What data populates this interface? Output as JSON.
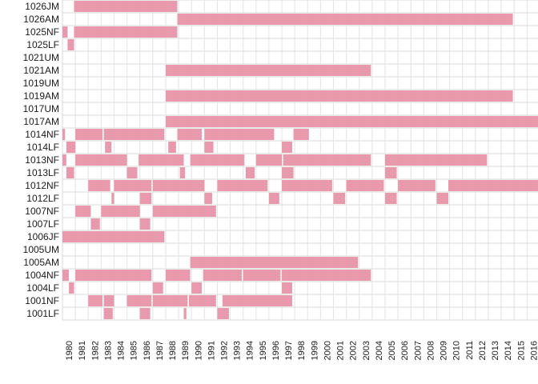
{
  "chart_data": {
    "type": "heatmap",
    "title": "",
    "xlabel": "",
    "ylabel": "",
    "grid": true,
    "fill_color": "#e899ab",
    "grid_color": "#d9d9d9",
    "x_start": 1980,
    "x_end": 2016,
    "x_tick_labels": [
      "1980",
      "1981",
      "1982",
      "1983",
      "1984",
      "1985",
      "1986",
      "1987",
      "1988",
      "1989",
      "1990",
      "1991",
      "1992",
      "1993",
      "1994",
      "1995",
      "1996",
      "1997",
      "1998",
      "1999",
      "2000",
      "2001",
      "2002",
      "2003",
      "2004",
      "2005",
      "2006",
      "2007",
      "2008",
      "2009",
      "2010",
      "2011",
      "2012",
      "2013",
      "2014",
      "2015",
      "2016"
    ],
    "y_categories": [
      "1026JM",
      "1026AM",
      "1025NF",
      "1025LF",
      "1021UM",
      "1021AM",
      "1019UM",
      "1019AM",
      "1017UM",
      "1017AM",
      "1014NF",
      "1014LF",
      "1013NF",
      "1013LF",
      "1012NF",
      "1012LF",
      "1007NF",
      "1007LF",
      "1006JF",
      "1005UM",
      "1005AM",
      "1004NF",
      "1004LF",
      "1001NF",
      "1001LF"
    ],
    "series": [
      {
        "category": "1026JM",
        "intervals": [
          [
            1980.9,
            1988.9
          ]
        ]
      },
      {
        "category": "1026AM",
        "intervals": [
          [
            1988.9,
            2014.9
          ]
        ]
      },
      {
        "category": "1025NF",
        "intervals": [
          [
            1980.0,
            1980.4
          ],
          [
            1980.9,
            1988.9
          ]
        ]
      },
      {
        "category": "1025LF",
        "intervals": [
          [
            1980.4,
            1980.9
          ]
        ]
      },
      {
        "category": "1021UM",
        "intervals": []
      },
      {
        "category": "1021AM",
        "intervals": [
          [
            1988.0,
            2003.9
          ]
        ]
      },
      {
        "category": "1019UM",
        "intervals": []
      },
      {
        "category": "1019AM",
        "intervals": [
          [
            1988.0,
            2014.9
          ]
        ]
      },
      {
        "category": "1017UM",
        "intervals": []
      },
      {
        "category": "1017AM",
        "intervals": [
          [
            1988.0,
            2016.9
          ]
        ]
      },
      {
        "category": "1014NF",
        "intervals": [
          [
            1980.0,
            1980.2
          ],
          [
            1981.0,
            1983.1
          ],
          [
            1983.2,
            1987.9
          ],
          [
            1988.9,
            1990.8
          ],
          [
            1991.0,
            1996.4
          ],
          [
            1997.9,
            1999.1
          ]
        ]
      },
      {
        "category": "1014LF",
        "intervals": [
          [
            1980.3,
            1981.0
          ],
          [
            1983.3,
            1983.8
          ],
          [
            1988.2,
            1988.8
          ],
          [
            1991.0,
            1991.7
          ],
          [
            1997.0,
            1997.8
          ]
        ]
      },
      {
        "category": "1013NF",
        "intervals": [
          [
            1980.0,
            1980.3
          ],
          [
            1981.0,
            1985.0
          ],
          [
            1985.9,
            1989.4
          ],
          [
            1989.9,
            1994.1
          ],
          [
            1995.0,
            1997.0
          ],
          [
            1997.1,
            2003.9
          ],
          [
            2005.0,
            2012.9
          ]
        ]
      },
      {
        "category": "1013LF",
        "intervals": [
          [
            1980.3,
            1980.9
          ],
          [
            1985.0,
            1985.8
          ],
          [
            1989.1,
            1989.5
          ],
          [
            1994.2,
            1994.9
          ],
          [
            1997.0,
            1997.9
          ],
          [
            2005.0,
            2005.9
          ]
        ]
      },
      {
        "category": "1012NF",
        "intervals": [
          [
            1982.0,
            1983.7
          ],
          [
            1984.0,
            1986.9
          ],
          [
            1987.0,
            1991.0
          ],
          [
            1992.0,
            1995.9
          ],
          [
            1997.0,
            2000.9
          ],
          [
            2002.0,
            2004.9
          ],
          [
            2006.0,
            2008.9
          ],
          [
            2009.9,
            2016.9
          ]
        ]
      },
      {
        "category": "1012LF",
        "intervals": [
          [
            1983.8,
            1984.0
          ],
          [
            1986.0,
            1986.9
          ],
          [
            1991.0,
            1991.6
          ],
          [
            1996.0,
            1996.8
          ],
          [
            2001.0,
            2001.9
          ],
          [
            2005.0,
            2005.9
          ],
          [
            2009.0,
            2009.9
          ]
        ]
      },
      {
        "category": "1007NF",
        "intervals": [
          [
            1981.0,
            1982.2
          ],
          [
            1983.0,
            1986.0
          ],
          [
            1987.0,
            1991.9
          ]
        ]
      },
      {
        "category": "1007LF",
        "intervals": [
          [
            1982.2,
            1982.9
          ],
          [
            1986.0,
            1986.8
          ]
        ]
      },
      {
        "category": "1006JF",
        "intervals": [
          [
            1980.0,
            1987.9
          ]
        ]
      },
      {
        "category": "1005UM",
        "intervals": []
      },
      {
        "category": "1005AM",
        "intervals": [
          [
            1989.9,
            2002.9
          ]
        ]
      },
      {
        "category": "1004NF",
        "intervals": [
          [
            1980.0,
            1980.5
          ],
          [
            1981.0,
            1986.9
          ],
          [
            1988.0,
            1989.9
          ],
          [
            1990.9,
            1993.9
          ],
          [
            1994.0,
            1996.9
          ],
          [
            1997.0,
            2003.9
          ]
        ]
      },
      {
        "category": "1004LF",
        "intervals": [
          [
            1980.5,
            1980.9
          ],
          [
            1987.0,
            1987.8
          ],
          [
            1990.0,
            1990.8
          ],
          [
            1997.0,
            1997.8
          ]
        ]
      },
      {
        "category": "1001NF",
        "intervals": [
          [
            1982.0,
            1983.1
          ],
          [
            1983.2,
            1984.0
          ],
          [
            1985.0,
            1986.9
          ],
          [
            1987.0,
            1989.7
          ],
          [
            1989.8,
            1991.9
          ],
          [
            1992.4,
            1997.8
          ]
        ]
      },
      {
        "category": "1001LF",
        "intervals": [
          [
            1983.2,
            1983.9
          ],
          [
            1986.0,
            1986.8
          ],
          [
            1989.4,
            1989.6
          ],
          [
            1992.0,
            1992.9
          ]
        ]
      }
    ]
  }
}
